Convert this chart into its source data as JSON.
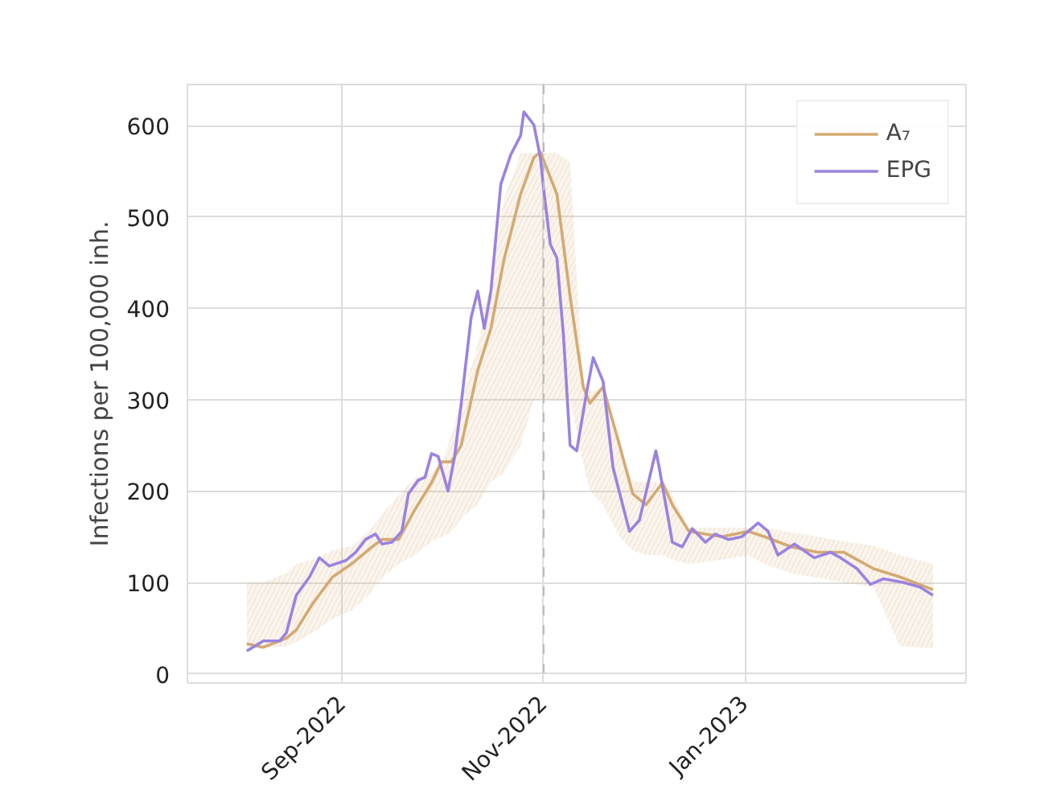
{
  "chart_data": {
    "type": "line",
    "ylabel": "Infections per 100,000 inh.",
    "xlim": [
      "2022-07-16",
      "2023-03-09"
    ],
    "xticks": [
      {
        "value": "2022-09-01",
        "label": "Sep-2022"
      },
      {
        "value": "2022-11-01",
        "label": "Nov-2022"
      },
      {
        "value": "2023-01-01",
        "label": "Jan-2023"
      }
    ],
    "ylim": [
      -10,
      645
    ],
    "yticks": [
      0,
      100,
      200,
      300,
      400,
      500,
      600
    ],
    "grid": true,
    "legend": "top right",
    "line_style": "solid",
    "ref_lines": [
      {
        "axis": "x",
        "value": "2022-11-01",
        "label": null,
        "color": "#bbbbbb",
        "line_style": "dashed"
      }
    ],
    "series": [
      {
        "name": "A₇",
        "color": "#d4aa72",
        "x": [
          "2022-08-03",
          "2022-08-08",
          "2022-08-15",
          "2022-08-18",
          "2022-08-23",
          "2022-08-29",
          "2022-09-04",
          "2022-09-10",
          "2022-09-13",
          "2022-09-18",
          "2022-09-23",
          "2022-09-28",
          "2022-10-01",
          "2022-10-04",
          "2022-10-07",
          "2022-10-12",
          "2022-10-16",
          "2022-10-20",
          "2022-10-25",
          "2022-10-29",
          "2022-10-31",
          "2022-11-05",
          "2022-11-09",
          "2022-11-13",
          "2022-11-15",
          "2022-11-19",
          "2022-11-24",
          "2022-11-28",
          "2022-12-02",
          "2022-12-07",
          "2022-12-10",
          "2022-12-15",
          "2022-12-25",
          "2023-01-02",
          "2023-01-07",
          "2023-01-15",
          "2023-01-23",
          "2023-01-31",
          "2023-02-09",
          "2023-02-17",
          "2023-02-27"
        ],
        "values": [
          33,
          29,
          39,
          48,
          77,
          106,
          121,
          139,
          147,
          147,
          180,
          209,
          232,
          232,
          250,
          332,
          378,
          454,
          525,
          565,
          571,
          525,
          413,
          314,
          296,
          314,
          250,
          197,
          185,
          209,
          185,
          156,
          150,
          156,
          150,
          139,
          133,
          133,
          115,
          106,
          92
        ],
        "lower": [
          28,
          28,
          30,
          35,
          45,
          60,
          70,
          90,
          105,
          120,
          130,
          145,
          150,
          155,
          170,
          185,
          210,
          220,
          250,
          300,
          300,
          300,
          300,
          230,
          200,
          185,
          150,
          135,
          130,
          130,
          125,
          120,
          125,
          130,
          120,
          110,
          105,
          100,
          95,
          30,
          28
        ],
        "upper": [
          100,
          100,
          110,
          120,
          125,
          135,
          140,
          160,
          175,
          195,
          215,
          220,
          230,
          260,
          300,
          360,
          430,
          520,
          570,
          570,
          570,
          570,
          560,
          310,
          310,
          310,
          250,
          210,
          210,
          210,
          195,
          160,
          160,
          160,
          160,
          155,
          150,
          145,
          140,
          130,
          120
        ]
      },
      {
        "name": "EPG",
        "color": "#9b82e0",
        "x": [
          "2022-08-03",
          "2022-08-08",
          "2022-08-13",
          "2022-08-15",
          "2022-08-18",
          "2022-08-22",
          "2022-08-25",
          "2022-08-28",
          "2022-09-02",
          "2022-09-05",
          "2022-09-08",
          "2022-09-11",
          "2022-09-13",
          "2022-09-16",
          "2022-09-19",
          "2022-09-21",
          "2022-09-24",
          "2022-09-26",
          "2022-09-28",
          "2022-09-30",
          "2022-10-03",
          "2022-10-05",
          "2022-10-07",
          "2022-10-10",
          "2022-10-12",
          "2022-10-14",
          "2022-10-16",
          "2022-10-19",
          "2022-10-22",
          "2022-10-25",
          "2022-10-26",
          "2022-10-29",
          "2022-10-31",
          "2022-11-01",
          "2022-11-03",
          "2022-11-05",
          "2022-11-07",
          "2022-11-09",
          "2022-11-11",
          "2022-11-14",
          "2022-11-16",
          "2022-11-19",
          "2022-11-22",
          "2022-11-27",
          "2022-11-30",
          "2022-12-05",
          "2022-12-06",
          "2022-12-10",
          "2022-12-13",
          "2022-12-16",
          "2022-12-20",
          "2022-12-23",
          "2022-12-27",
          "2022-12-31",
          "2023-01-05",
          "2023-01-08",
          "2023-01-11",
          "2023-01-16",
          "2023-01-22",
          "2023-01-27",
          "2023-01-30",
          "2023-02-04",
          "2023-02-08",
          "2023-02-12",
          "2023-02-18",
          "2023-02-23",
          "2023-02-27"
        ],
        "values": [
          25,
          36,
          36,
          45,
          86,
          106,
          127,
          118,
          124,
          133,
          147,
          153,
          142,
          144,
          156,
          197,
          212,
          215,
          241,
          238,
          200,
          238,
          296,
          390,
          419,
          378,
          419,
          536,
          568,
          589,
          615,
          601,
          565,
          530,
          470,
          455,
          370,
          250,
          244,
          308,
          346,
          320,
          226,
          156,
          168,
          244,
          226,
          144,
          139,
          159,
          144,
          153,
          147,
          150,
          165,
          156,
          130,
          142,
          127,
          133,
          127,
          115,
          98,
          104,
          100,
          95,
          86
        ]
      }
    ]
  }
}
